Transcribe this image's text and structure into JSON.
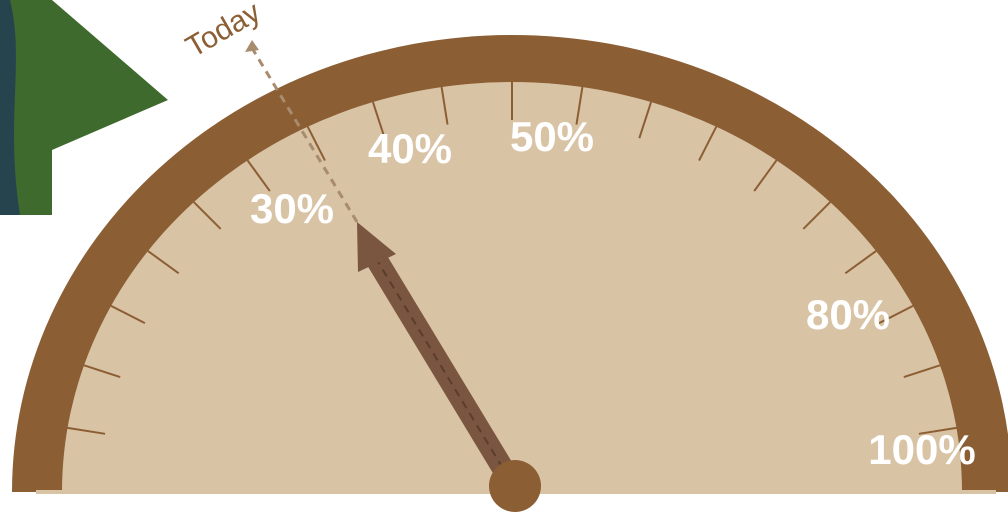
{
  "gauge": {
    "annotation": "Today",
    "labels": [
      "30%",
      "40%",
      "50%",
      "80%",
      "100%"
    ]
  }
}
